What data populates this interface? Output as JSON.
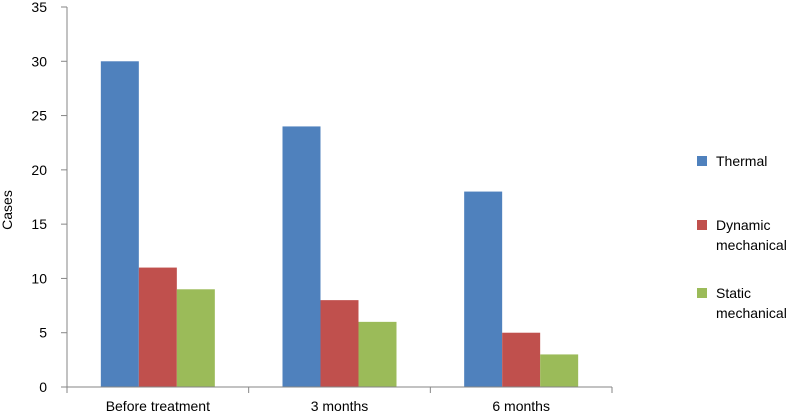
{
  "chart_data": {
    "type": "bar",
    "title": "",
    "xlabel": "",
    "ylabel": "Cases",
    "ylim": [
      0,
      35
    ],
    "yticks": [
      0,
      5,
      10,
      15,
      20,
      25,
      30,
      35
    ],
    "grid": false,
    "legend_position": "right",
    "categories": [
      "Before treatment",
      "3 months",
      "6 months"
    ],
    "series": [
      {
        "name": "Thermal",
        "legend_lines": [
          "Thermal"
        ],
        "color": "#4f81bd",
        "values": [
          30,
          24,
          18
        ]
      },
      {
        "name": "Dynamic mechanical",
        "legend_lines": [
          "Dynamic",
          "mechanical"
        ],
        "color": "#c0504d",
        "values": [
          11,
          8,
          5
        ]
      },
      {
        "name": "Static mechanical",
        "legend_lines": [
          "Static",
          "mechanical"
        ],
        "color": "#9bbb59",
        "values": [
          9,
          6,
          3
        ]
      }
    ]
  }
}
